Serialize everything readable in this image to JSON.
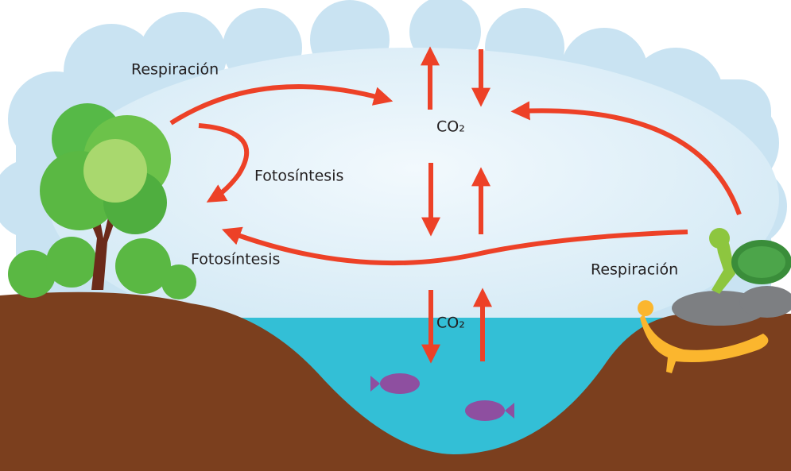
{
  "labels": {
    "respiration_left": "Respiración",
    "photosynthesis_upper": "Fotosíntesis",
    "co2_air": "CO₂",
    "photosynthesis_lower": "Fotosíntesis",
    "respiration_right": "Respiración",
    "co2_water": "CO₂"
  }
}
